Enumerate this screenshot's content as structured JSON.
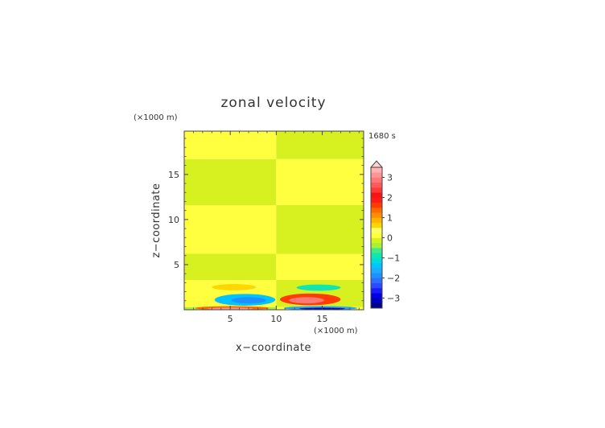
{
  "chart_data": {
    "type": "heatmap",
    "title": "zonal velocity",
    "xlabel": "x−coordinate",
    "ylabel": "z−coordinate",
    "time_label": "1680 s",
    "x_unit": "(×1000 m)",
    "y_unit": "(×1000 m)",
    "xlim": [
      0,
      19.5
    ],
    "ylim": [
      0,
      19.8
    ],
    "x_ticks": [
      5,
      10,
      15
    ],
    "x_tick_labels": [
      "5",
      "10",
      "15"
    ],
    "y_ticks": [
      5,
      10,
      15
    ],
    "y_tick_labels": [
      "5",
      "10",
      "15"
    ],
    "colorbar": {
      "levels": [
        -3.5,
        -3.25,
        -3,
        -2.75,
        -2.5,
        -2.25,
        -2,
        -1.75,
        -1.5,
        -1.25,
        -1,
        -0.75,
        -0.5,
        -0.25,
        0,
        0.25,
        0.5,
        0.75,
        1,
        1.25,
        1.5,
        1.75,
        2,
        2.25,
        2.5,
        2.75,
        3,
        3.25,
        3.5
      ],
      "colors": [
        "#00008b",
        "#0000b8",
        "#0000e0",
        "#1a1aff",
        "#2a4bff",
        "#2f6cff",
        "#1e90ff",
        "#1fa9ff",
        "#00c4ff",
        "#00dcd8",
        "#10e6ad",
        "#44e888",
        "#a6f035",
        "#d6f020",
        "#ffff40",
        "#ffff66",
        "#ffd700",
        "#ffb400",
        "#ff8f00",
        "#ff6a00",
        "#ff3c00",
        "#ff1a1a",
        "#f51414",
        "#ff3838",
        "#ff5a5a",
        "#ff7878",
        "#ff9494",
        "#ffb3b3"
      ],
      "tick_values": [
        -3,
        -2,
        -1,
        0,
        1,
        2,
        3
      ],
      "tick_labels": [
        "−3",
        "−2",
        "−1",
        "0",
        "1",
        "2",
        "3"
      ],
      "extend": "max"
    },
    "field": {
      "background_bands_left": [
        {
          "z": [
            0,
            0.3
          ],
          "value": -0.5
        },
        {
          "z": [
            0.3,
            3.3
          ],
          "value": 0.1
        },
        {
          "z": [
            3.3,
            6.2
          ],
          "value": -0.1
        },
        {
          "z": [
            6.2,
            11.6
          ],
          "value": 0.1
        },
        {
          "z": [
            11.6,
            16.7
          ],
          "value": -0.1
        },
        {
          "z": [
            16.7,
            19.8
          ],
          "value": 0.1
        }
      ],
      "background_bands_right": [
        {
          "z": [
            0,
            0.3
          ],
          "value": 0.1
        },
        {
          "z": [
            0.3,
            3.3
          ],
          "value": -0.1
        },
        {
          "z": [
            3.3,
            6.2
          ],
          "value": 0.1
        },
        {
          "z": [
            6.2,
            11.6
          ],
          "value": -0.1
        },
        {
          "z": [
            11.6,
            16.7
          ],
          "value": 0.1
        },
        {
          "z": [
            16.7,
            19.8
          ],
          "value": -0.1
        }
      ],
      "features": [
        {
          "x": 5.4,
          "z": 2.5,
          "rx": 2.4,
          "rz": 0.35,
          "value": 0.6
        },
        {
          "x": 6.6,
          "z": 1.1,
          "rx": 3.3,
          "rz": 0.65,
          "value": -1.3
        },
        {
          "x": 7.0,
          "z": 1.05,
          "rx": 1.9,
          "rz": 0.35,
          "value": -2.0
        },
        {
          "x": 5.2,
          "z": 0.18,
          "rx": 4.0,
          "rz": 0.22,
          "value": 1.3
        },
        {
          "x": 5.0,
          "z": 0.12,
          "rx": 2.5,
          "rz": 0.1,
          "value": 3.0
        },
        {
          "x": 14.6,
          "z": 2.45,
          "rx": 2.4,
          "rz": 0.35,
          "value": -0.9
        },
        {
          "x": 13.7,
          "z": 1.15,
          "rx": 3.3,
          "rz": 0.65,
          "value": 1.6
        },
        {
          "x": 13.3,
          "z": 1.05,
          "rx": 1.9,
          "rz": 0.35,
          "value": 2.8
        },
        {
          "x": 14.8,
          "z": 0.18,
          "rx": 4.0,
          "rz": 0.22,
          "value": -1.6
        },
        {
          "x": 15.0,
          "z": 0.12,
          "rx": 2.5,
          "rz": 0.1,
          "value": -3.2
        }
      ]
    }
  }
}
